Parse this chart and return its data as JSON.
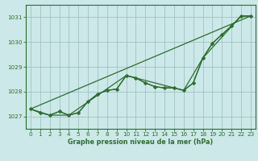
{
  "background_color": "#cce8e8",
  "plot_bg_color": "#cce8e8",
  "grid_color": "#99bbbb",
  "line_color": "#2d6e2d",
  "marker_color": "#2d6e2d",
  "xlabel": "Graphe pression niveau de la mer (hPa)",
  "xlim": [
    -0.5,
    23.5
  ],
  "ylim": [
    1026.5,
    1031.5
  ],
  "yticks": [
    1027,
    1028,
    1029,
    1030,
    1031
  ],
  "xticks": [
    0,
    1,
    2,
    3,
    4,
    5,
    6,
    7,
    8,
    9,
    10,
    11,
    12,
    13,
    14,
    15,
    16,
    17,
    18,
    19,
    20,
    21,
    22,
    23
  ],
  "series_main": [
    [
      0,
      1027.3
    ],
    [
      1,
      1027.15
    ],
    [
      2,
      1027.05
    ],
    [
      3,
      1027.2
    ],
    [
      4,
      1027.05
    ],
    [
      5,
      1027.15
    ],
    [
      6,
      1027.6
    ],
    [
      7,
      1027.9
    ],
    [
      8,
      1028.05
    ],
    [
      9,
      1028.1
    ],
    [
      10,
      1028.65
    ],
    [
      11,
      1028.55
    ],
    [
      12,
      1028.35
    ],
    [
      13,
      1028.2
    ],
    [
      14,
      1028.15
    ],
    [
      15,
      1028.15
    ],
    [
      16,
      1028.05
    ],
    [
      17,
      1028.35
    ],
    [
      18,
      1029.35
    ],
    [
      19,
      1029.95
    ],
    [
      20,
      1030.3
    ],
    [
      21,
      1030.65
    ],
    [
      22,
      1031.05
    ],
    [
      23,
      1031.05
    ]
  ],
  "series_markers": [
    [
      0,
      1027.3
    ],
    [
      1,
      1027.15
    ],
    [
      2,
      1027.05
    ],
    [
      3,
      1027.2
    ],
    [
      4,
      1027.05
    ],
    [
      5,
      1027.15
    ],
    [
      6,
      1027.6
    ],
    [
      7,
      1027.9
    ],
    [
      8,
      1028.05
    ],
    [
      9,
      1028.1
    ],
    [
      10,
      1028.65
    ],
    [
      11,
      1028.55
    ],
    [
      12,
      1028.35
    ],
    [
      13,
      1028.2
    ],
    [
      14,
      1028.15
    ],
    [
      15,
      1028.15
    ],
    [
      16,
      1028.05
    ],
    [
      17,
      1028.35
    ],
    [
      18,
      1029.35
    ],
    [
      19,
      1029.95
    ],
    [
      20,
      1030.3
    ],
    [
      21,
      1030.65
    ],
    [
      22,
      1031.05
    ],
    [
      23,
      1031.05
    ]
  ],
  "series_straight": [
    [
      0,
      1027.3
    ],
    [
      23,
      1031.05
    ]
  ],
  "series_zigzag": [
    [
      0,
      1027.3
    ],
    [
      2,
      1027.05
    ],
    [
      4,
      1027.05
    ],
    [
      10,
      1028.65
    ],
    [
      11,
      1028.55
    ],
    [
      16,
      1028.05
    ],
    [
      18,
      1029.35
    ],
    [
      22,
      1031.05
    ],
    [
      23,
      1031.05
    ]
  ]
}
